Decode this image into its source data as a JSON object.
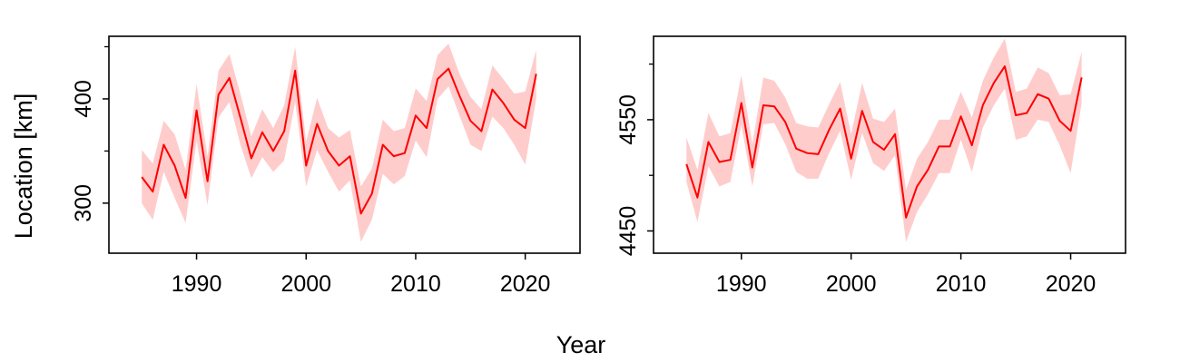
{
  "figure": {
    "ylabel": "Location [km]",
    "xlabel": "Year"
  },
  "chart_data": [
    {
      "type": "line",
      "xlim": [
        1982,
        2025
      ],
      "ylim": [
        252,
        460
      ],
      "x_ticks": [
        1990,
        2000,
        2010,
        2020
      ],
      "y_ticks": [
        300,
        400
      ],
      "y_minor_ticks": [
        350,
        450
      ],
      "band_color": "#ffcccc",
      "line_color": "#ff0000",
      "series": [
        {
          "x": [
            1985,
            1986,
            1987,
            1988,
            1989,
            1990,
            1991,
            1992,
            1993,
            1994,
            1995,
            1996,
            1997,
            1998,
            1999,
            2000,
            2001,
            2002,
            2003,
            2004,
            2005,
            2006,
            2007,
            2008,
            2009,
            2010,
            2011,
            2012,
            2013,
            2014,
            2015,
            2016,
            2017,
            2018,
            2019,
            2020,
            2021
          ],
          "y": [
            325,
            311,
            356,
            336,
            305,
            389,
            321,
            404,
            420,
            382,
            343,
            368,
            350,
            369,
            427,
            336,
            376,
            350,
            336,
            345,
            290,
            309,
            356,
            345,
            348,
            384,
            372,
            419,
            429,
            403,
            379,
            369,
            409,
            396,
            380,
            372,
            424
          ],
          "lower": [
            300,
            284,
            330,
            305,
            281,
            360,
            298,
            382,
            397,
            356,
            324,
            344,
            330,
            341,
            397,
            316,
            351,
            330,
            311,
            322,
            263,
            284,
            328,
            318,
            326,
            360,
            344,
            400,
            412,
            384,
            356,
            350,
            383,
            372,
            356,
            337,
            400
          ],
          "upper": [
            351,
            338,
            379,
            366,
            332,
            414,
            345,
            427,
            443,
            405,
            364,
            390,
            372,
            394,
            450,
            359,
            401,
            372,
            363,
            370,
            316,
            333,
            380,
            369,
            372,
            410,
            398,
            442,
            453,
            424,
            402,
            390,
            432,
            419,
            405,
            407,
            447
          ]
        }
      ]
    },
    {
      "type": "line",
      "xlim": [
        1982,
        2025
      ],
      "ylim": [
        4430,
        4625
      ],
      "x_ticks": [
        1990,
        2000,
        2010,
        2020
      ],
      "y_ticks": [
        4450,
        4550
      ],
      "y_minor_ticks": [
        4500,
        4600
      ],
      "band_color": "#ffcccc",
      "line_color": "#ff0000",
      "series": [
        {
          "x": [
            1985,
            1986,
            1987,
            1988,
            1989,
            1990,
            1991,
            1992,
            1993,
            1994,
            1995,
            1996,
            1997,
            1998,
            1999,
            2000,
            2001,
            2002,
            2003,
            2004,
            2005,
            2006,
            2007,
            2008,
            2009,
            2010,
            2011,
            2012,
            2013,
            2014,
            2015,
            2016,
            2017,
            2018,
            2019,
            2020,
            2021
          ],
          "y": [
            4510,
            4480,
            4530,
            4512,
            4514,
            4565,
            4507,
            4563,
            4562,
            4548,
            4524,
            4520,
            4519,
            4541,
            4560,
            4515,
            4558,
            4530,
            4523,
            4537,
            4462,
            4490,
            4505,
            4526,
            4526,
            4553,
            4527,
            4563,
            4583,
            4598,
            4554,
            4556,
            4573,
            4569,
            4549,
            4540,
            4588
          ],
          "lower": [
            4494,
            4458,
            4508,
            4490,
            4494,
            4545,
            4490,
            4546,
            4547,
            4528,
            4503,
            4497,
            4497,
            4520,
            4540,
            4496,
            4538,
            4511,
            4504,
            4518,
            4440,
            4467,
            4483,
            4502,
            4502,
            4532,
            4503,
            4543,
            4563,
            4578,
            4532,
            4535,
            4550,
            4548,
            4527,
            4502,
            4565
          ],
          "upper": [
            4534,
            4505,
            4556,
            4535,
            4538,
            4590,
            4528,
            4588,
            4585,
            4570,
            4547,
            4544,
            4543,
            4564,
            4584,
            4537,
            4583,
            4551,
            4548,
            4560,
            4487,
            4515,
            4530,
            4550,
            4550,
            4575,
            4552,
            4585,
            4606,
            4623,
            4575,
            4578,
            4597,
            4592,
            4572,
            4573,
            4611
          ]
        }
      ]
    }
  ]
}
